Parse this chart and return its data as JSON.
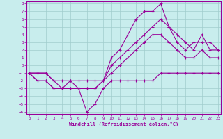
{
  "xlabel": "Windchill (Refroidissement éolien,°C)",
  "bg_color": "#c8eded",
  "line_color": "#990099",
  "grid_color": "#a0cccc",
  "x_data": [
    0,
    1,
    2,
    3,
    4,
    5,
    6,
    7,
    8,
    9,
    10,
    11,
    12,
    13,
    14,
    15,
    16,
    17,
    18,
    19,
    20,
    21,
    22,
    23
  ],
  "line1": [
    -1,
    -1,
    -1,
    -2,
    -3,
    -2,
    -3,
    -6,
    -5,
    -3,
    -2,
    -2,
    -2,
    -2,
    -2,
    -2,
    -1,
    -1,
    -1,
    -1,
    -1,
    -1,
    -1,
    -1
  ],
  "line2": [
    -1,
    -1,
    -1,
    -2,
    -2,
    -2,
    -2,
    -2,
    -2,
    -2,
    -1,
    0,
    1,
    2,
    3,
    4,
    4,
    3,
    2,
    1,
    1,
    2,
    1,
    1
  ],
  "line3": [
    -1,
    -2,
    -2,
    -3,
    -3,
    -3,
    -3,
    -3,
    -3,
    -2,
    0,
    1,
    2,
    3,
    4,
    5,
    6,
    5,
    4,
    3,
    2,
    4,
    2,
    2
  ],
  "line4": [
    -1,
    -2,
    -2,
    -3,
    -3,
    -3,
    -3,
    -3,
    -3,
    -2,
    1,
    2,
    4,
    6,
    7,
    7,
    8,
    5,
    3,
    2,
    3,
    3,
    3,
    2
  ],
  "xlim": [
    0,
    23
  ],
  "ylim": [
    -6,
    8
  ],
  "yticks": [
    8,
    7,
    6,
    5,
    4,
    3,
    2,
    1,
    0,
    -1,
    -2,
    -3,
    -4,
    -5,
    -6
  ],
  "xticks": [
    0,
    1,
    2,
    3,
    4,
    5,
    6,
    7,
    8,
    9,
    10,
    11,
    12,
    13,
    14,
    15,
    16,
    17,
    18,
    19,
    20,
    21,
    22,
    23
  ]
}
